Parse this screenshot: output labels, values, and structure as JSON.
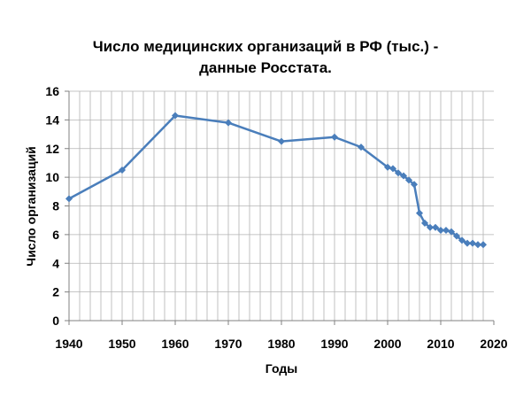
{
  "chart_data": {
    "type": "line",
    "title_lines": [
      "Число медицинских организаций в РФ (тыс.) -",
      "данные Росстата."
    ],
    "xlabel": "Годы",
    "ylabel": "Число  организаций",
    "xlim": [
      1940,
      2020
    ],
    "ylim": [
      0,
      16
    ],
    "x_ticks": [
      1940,
      1950,
      1960,
      1970,
      1980,
      1990,
      2000,
      2010,
      2020
    ],
    "y_ticks": [
      0,
      2,
      4,
      6,
      8,
      10,
      12,
      14,
      16
    ],
    "x_minor_step": 2,
    "grid": true,
    "legend": "none",
    "series": [
      {
        "color": "#4a7ebb",
        "marker": "diamond",
        "x": [
          1940,
          1950,
          1960,
          1970,
          1980,
          1990,
          1995,
          2000,
          2001,
          2002,
          2003,
          2004,
          2005,
          2006,
          2007,
          2008,
          2009,
          2010,
          2011,
          2012,
          2013,
          2014,
          2015,
          2016,
          2017,
          2018
        ],
        "y": [
          8.5,
          10.5,
          14.3,
          13.8,
          12.5,
          12.8,
          12.1,
          10.7,
          10.6,
          10.3,
          10.1,
          9.8,
          9.5,
          7.5,
          6.8,
          6.5,
          6.5,
          6.3,
          6.3,
          6.2,
          5.9,
          5.6,
          5.4,
          5.4,
          5.3,
          5.3
        ]
      }
    ]
  }
}
